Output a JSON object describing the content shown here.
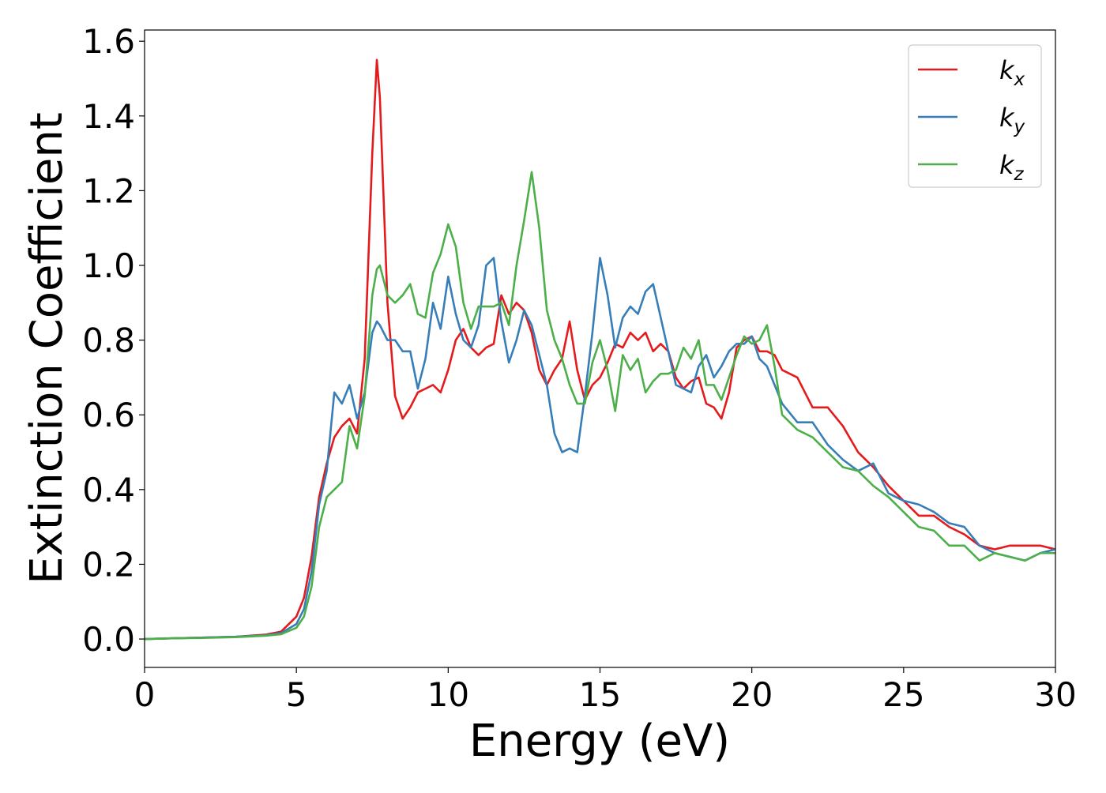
{
  "chart_data": {
    "type": "line",
    "xlabel": "Energy (eV)",
    "ylabel": "Extinction Coefficient",
    "xlim": [
      0,
      30
    ],
    "ylim": [
      -0.076,
      1.63
    ],
    "xticks": [
      0,
      5,
      10,
      15,
      20,
      25,
      30
    ],
    "yticks": [
      {
        "value": 0,
        "label": "0.0"
      },
      {
        "value": 0.2,
        "label": "0.2"
      },
      {
        "value": 0.4,
        "label": "0.4"
      },
      {
        "value": 0.6,
        "label": "0.6"
      },
      {
        "value": 0.8,
        "label": "0.8"
      },
      {
        "value": 1.0,
        "label": "1.0"
      },
      {
        "value": 1.2,
        "label": "1.2"
      },
      {
        "value": 1.4,
        "label": "1.4"
      },
      {
        "value": 1.6,
        "label": "1.6"
      }
    ],
    "grid": false,
    "legend": "upper right",
    "x": [
      0,
      1,
      2,
      3,
      4,
      4.5,
      5,
      5.25,
      5.5,
      5.75,
      6,
      6.25,
      6.5,
      6.75,
      7,
      7.25,
      7.5,
      7.65,
      7.75,
      8,
      8.25,
      8.5,
      8.75,
      9,
      9.25,
      9.5,
      9.75,
      10,
      10.25,
      10.5,
      10.75,
      11,
      11.25,
      11.5,
      11.75,
      12,
      12.25,
      12.5,
      12.75,
      13,
      13.25,
      13.5,
      13.75,
      14,
      14.25,
      14.5,
      14.75,
      15,
      15.25,
      15.5,
      15.75,
      16,
      16.25,
      16.5,
      16.75,
      17,
      17.25,
      17.5,
      17.75,
      18,
      18.25,
      18.5,
      18.75,
      19,
      19.25,
      19.5,
      19.75,
      20,
      20.25,
      20.5,
      20.75,
      21,
      21.5,
      22,
      22.5,
      23,
      23.5,
      24,
      24.5,
      25,
      25.5,
      26,
      26.5,
      27,
      27.5,
      28,
      28.5,
      29,
      29.5,
      30
    ],
    "series": [
      {
        "name": "kx",
        "color": "#e41a1c",
        "values": [
          0,
          0.002,
          0.004,
          0.006,
          0.012,
          0.02,
          0.06,
          0.11,
          0.22,
          0.38,
          0.47,
          0.54,
          0.57,
          0.59,
          0.55,
          0.75,
          1.3,
          1.55,
          1.45,
          0.9,
          0.65,
          0.59,
          0.62,
          0.66,
          0.67,
          0.68,
          0.66,
          0.72,
          0.8,
          0.83,
          0.78,
          0.76,
          0.78,
          0.79,
          0.92,
          0.87,
          0.9,
          0.88,
          0.82,
          0.72,
          0.68,
          0.72,
          0.75,
          0.85,
          0.72,
          0.64,
          0.68,
          0.7,
          0.74,
          0.79,
          0.78,
          0.82,
          0.8,
          0.82,
          0.77,
          0.79,
          0.77,
          0.7,
          0.67,
          0.69,
          0.7,
          0.63,
          0.62,
          0.59,
          0.66,
          0.78,
          0.8,
          0.81,
          0.77,
          0.77,
          0.76,
          0.72,
          0.7,
          0.62,
          0.62,
          0.57,
          0.5,
          0.46,
          0.41,
          0.37,
          0.33,
          0.33,
          0.3,
          0.28,
          0.25,
          0.24,
          0.25,
          0.25,
          0.25,
          0.24
        ]
      },
      {
        "name": "ky",
        "color": "#377eb8",
        "values": [
          0,
          0.002,
          0.004,
          0.006,
          0.01,
          0.016,
          0.04,
          0.08,
          0.18,
          0.36,
          0.45,
          0.66,
          0.63,
          0.68,
          0.59,
          0.66,
          0.82,
          0.85,
          0.84,
          0.8,
          0.8,
          0.77,
          0.77,
          0.67,
          0.75,
          0.9,
          0.83,
          0.97,
          0.87,
          0.8,
          0.78,
          0.84,
          1.0,
          1.02,
          0.85,
          0.74,
          0.8,
          0.88,
          0.84,
          0.76,
          0.68,
          0.55,
          0.5,
          0.51,
          0.5,
          0.65,
          0.82,
          1.02,
          0.92,
          0.78,
          0.86,
          0.89,
          0.87,
          0.93,
          0.95,
          0.86,
          0.77,
          0.68,
          0.67,
          0.66,
          0.73,
          0.76,
          0.7,
          0.73,
          0.77,
          0.79,
          0.79,
          0.81,
          0.75,
          0.73,
          0.68,
          0.63,
          0.58,
          0.58,
          0.52,
          0.48,
          0.45,
          0.47,
          0.39,
          0.37,
          0.36,
          0.34,
          0.31,
          0.3,
          0.25,
          0.23,
          0.22,
          0.21,
          0.23,
          0.24
        ]
      },
      {
        "name": "kz",
        "color": "#4daf4a",
        "values": [
          0,
          0.002,
          0.003,
          0.005,
          0.009,
          0.013,
          0.03,
          0.06,
          0.14,
          0.3,
          0.38,
          0.4,
          0.42,
          0.57,
          0.51,
          0.65,
          0.92,
          0.99,
          1.0,
          0.92,
          0.9,
          0.92,
          0.95,
          0.87,
          0.86,
          0.98,
          1.03,
          1.11,
          1.05,
          0.9,
          0.83,
          0.89,
          0.89,
          0.89,
          0.9,
          0.84,
          1.0,
          1.12,
          1.25,
          1.1,
          0.88,
          0.8,
          0.75,
          0.68,
          0.63,
          0.63,
          0.74,
          0.8,
          0.72,
          0.61,
          0.76,
          0.72,
          0.75,
          0.66,
          0.69,
          0.71,
          0.71,
          0.72,
          0.78,
          0.75,
          0.8,
          0.68,
          0.68,
          0.64,
          0.7,
          0.76,
          0.81,
          0.79,
          0.8,
          0.84,
          0.73,
          0.6,
          0.56,
          0.54,
          0.5,
          0.46,
          0.45,
          0.41,
          0.38,
          0.34,
          0.3,
          0.29,
          0.25,
          0.25,
          0.21,
          0.23,
          0.22,
          0.21,
          0.23,
          0.23
        ]
      }
    ]
  }
}
